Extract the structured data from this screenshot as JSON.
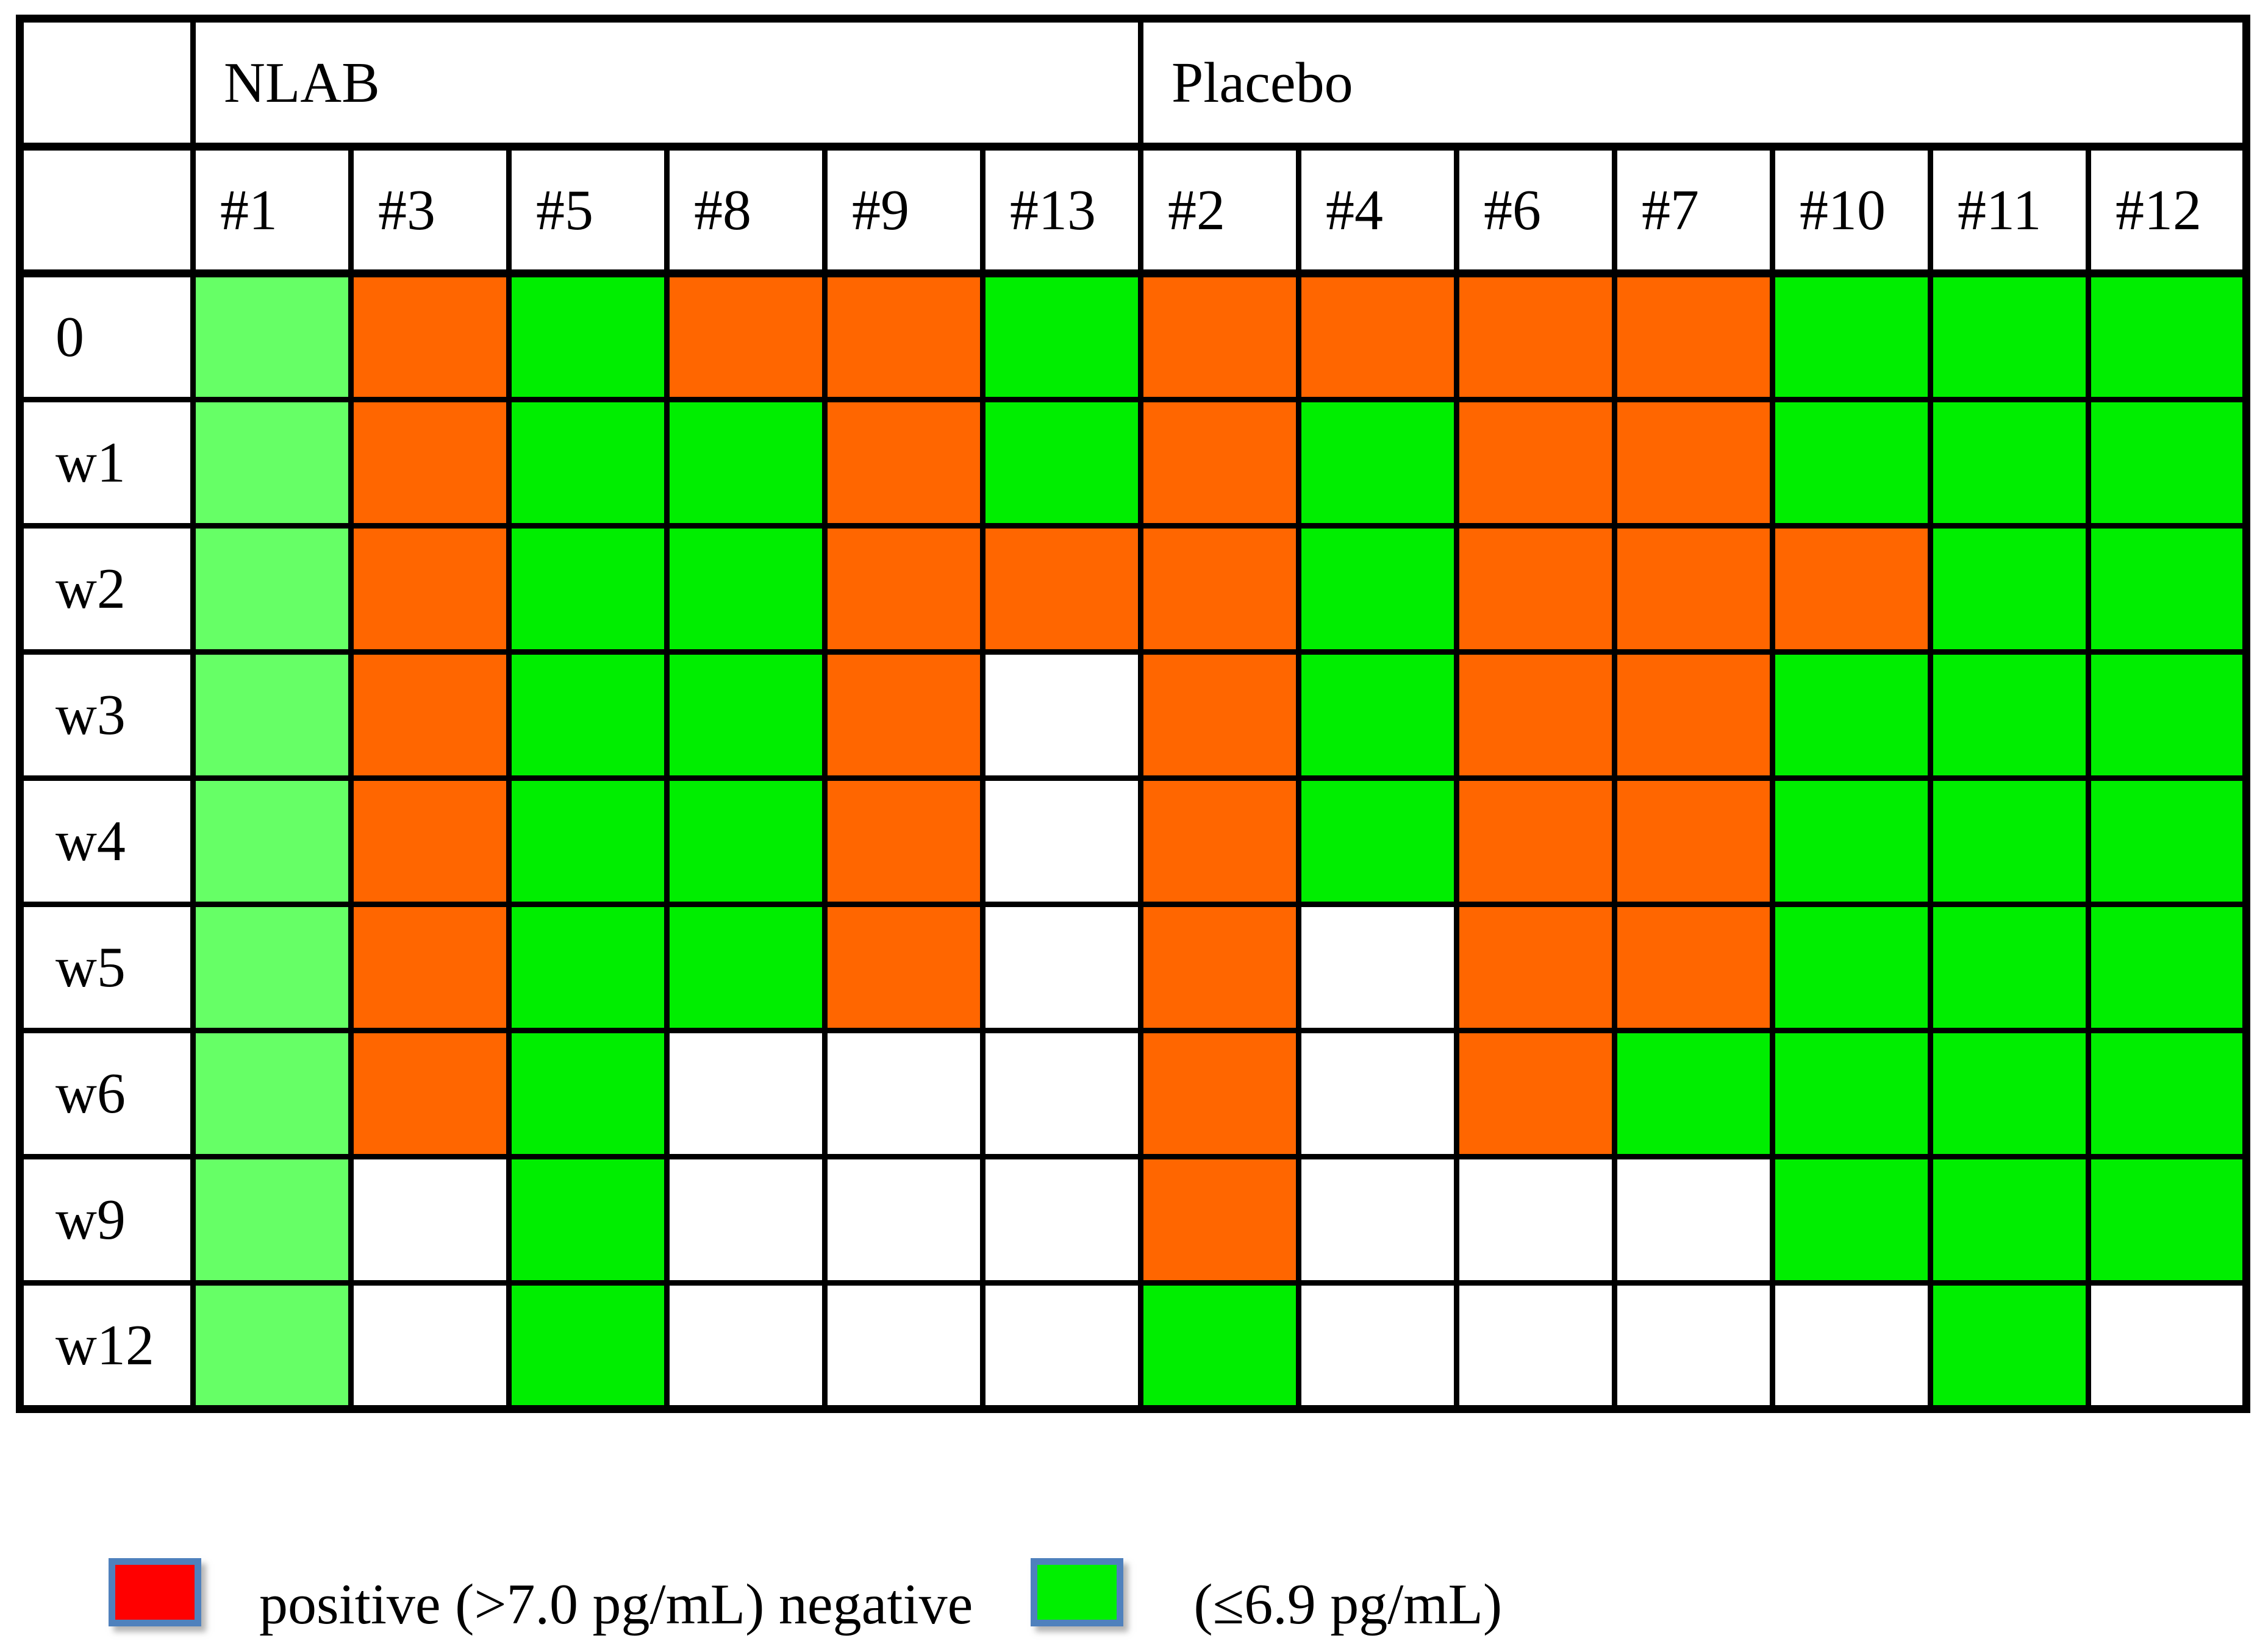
{
  "chart_data": {
    "type": "heatmap",
    "title": "",
    "column_groups": [
      {
        "label": "NLAB",
        "span": 6
      },
      {
        "label": "Placebo",
        "span": 7
      }
    ],
    "columns": [
      "#1",
      "#3",
      "#5",
      "#8",
      "#9",
      "#13",
      "#2",
      "#4",
      "#6",
      "#7",
      "#10",
      "#11",
      "#12"
    ],
    "rows": [
      "0",
      "w1",
      "w2",
      "w3",
      "w4",
      "w5",
      "w6",
      "w9",
      "w12"
    ],
    "cell_states": [
      [
        "light-negative",
        "positive",
        "negative",
        "positive",
        "positive",
        "negative",
        "positive",
        "positive",
        "positive",
        "positive",
        "negative",
        "negative",
        "negative"
      ],
      [
        "light-negative",
        "positive",
        "negative",
        "negative",
        "positive",
        "negative",
        "positive",
        "negative",
        "positive",
        "positive",
        "negative",
        "negative",
        "negative"
      ],
      [
        "light-negative",
        "positive",
        "negative",
        "negative",
        "positive",
        "positive",
        "positive",
        "negative",
        "positive",
        "positive",
        "positive",
        "negative",
        "negative"
      ],
      [
        "light-negative",
        "positive",
        "negative",
        "negative",
        "positive",
        "no-data",
        "positive",
        "negative",
        "positive",
        "positive",
        "negative",
        "negative",
        "negative"
      ],
      [
        "light-negative",
        "positive",
        "negative",
        "negative",
        "positive",
        "no-data",
        "positive",
        "negative",
        "positive",
        "positive",
        "negative",
        "negative",
        "negative"
      ],
      [
        "light-negative",
        "positive",
        "negative",
        "negative",
        "positive",
        "no-data",
        "positive",
        "no-data",
        "positive",
        "positive",
        "negative",
        "negative",
        "negative"
      ],
      [
        "light-negative",
        "positive",
        "negative",
        "no-data",
        "no-data",
        "no-data",
        "positive",
        "no-data",
        "positive",
        "negative",
        "negative",
        "negative",
        "negative"
      ],
      [
        "light-negative",
        "no-data",
        "negative",
        "no-data",
        "no-data",
        "no-data",
        "positive",
        "no-data",
        "no-data",
        "no-data",
        "negative",
        "negative",
        "negative"
      ],
      [
        "light-negative",
        "no-data",
        "negative",
        "no-data",
        "no-data",
        "no-data",
        "negative",
        "no-data",
        "no-data",
        "no-data",
        "no-data",
        "negative",
        "no-data"
      ]
    ],
    "state_colors": {
      "positive": "#ff6600",
      "negative": "#00ee00",
      "light-negative": "#66ff66",
      "no-data": "#ffffff"
    },
    "legend_position": "bottom"
  },
  "legend": {
    "items": [
      {
        "label": "positive (>7.0 pg/mL) negative",
        "swatch_color": "#ff0000"
      },
      {
        "label": "(≤6.9 pg/mL)",
        "swatch_color": "#00f000"
      }
    ],
    "swatch_border_color": "#4f81bd"
  }
}
